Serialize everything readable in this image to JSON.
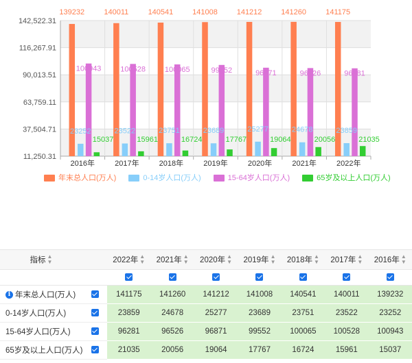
{
  "chart_data": {
    "type": "bar",
    "categories": [
      "2016年",
      "2017年",
      "2018年",
      "2019年",
      "2020年",
      "2021年",
      "2022年"
    ],
    "y_ticks": [
      "142,522.31",
      "116,267.91",
      "90,013.51",
      "63,759.11",
      "37,504.71",
      "11,250.31"
    ],
    "ylim": [
      11250.31,
      142522.31
    ],
    "legend_position": "bottom",
    "series": [
      {
        "name": "年末总人口(万人)",
        "color": "#ff7f50",
        "values": [
          139232,
          140011,
          140541,
          141008,
          141212,
          141260,
          141175
        ]
      },
      {
        "name": "0-14岁人口(万人)",
        "color": "#87cefa",
        "values": [
          23252,
          23522,
          23751,
          23689,
          25277,
          24678,
          23859
        ]
      },
      {
        "name": "15-64岁人口(万人)",
        "color": "#da70d6",
        "values": [
          100943,
          100528,
          100065,
          99552,
          96871,
          96526,
          96281
        ]
      },
      {
        "name": "65岁及以上人口(万人)",
        "color": "#32cd32",
        "values": [
          15037,
          15961,
          16724,
          17767,
          19064,
          20056,
          21035
        ]
      }
    ]
  },
  "table": {
    "indicator_header": "指标",
    "years": [
      "2022年",
      "2021年",
      "2020年",
      "2019年",
      "2018年",
      "2017年",
      "2016年"
    ],
    "rows": [
      {
        "label": "年末总人口(万人)",
        "info": "i",
        "values": [
          "141175",
          "141260",
          "141212",
          "141008",
          "140541",
          "140011",
          "139232"
        ]
      },
      {
        "label": "0-14岁人口(万人)",
        "values": [
          "23859",
          "24678",
          "25277",
          "23689",
          "23751",
          "23522",
          "23252"
        ]
      },
      {
        "label": "15-64岁人口(万人)",
        "values": [
          "96281",
          "96526",
          "96871",
          "99552",
          "100065",
          "100528",
          "100943"
        ]
      },
      {
        "label": "65岁及以上人口(万人)",
        "values": [
          "21035",
          "20056",
          "19064",
          "17767",
          "16724",
          "15961",
          "15037"
        ]
      }
    ]
  }
}
